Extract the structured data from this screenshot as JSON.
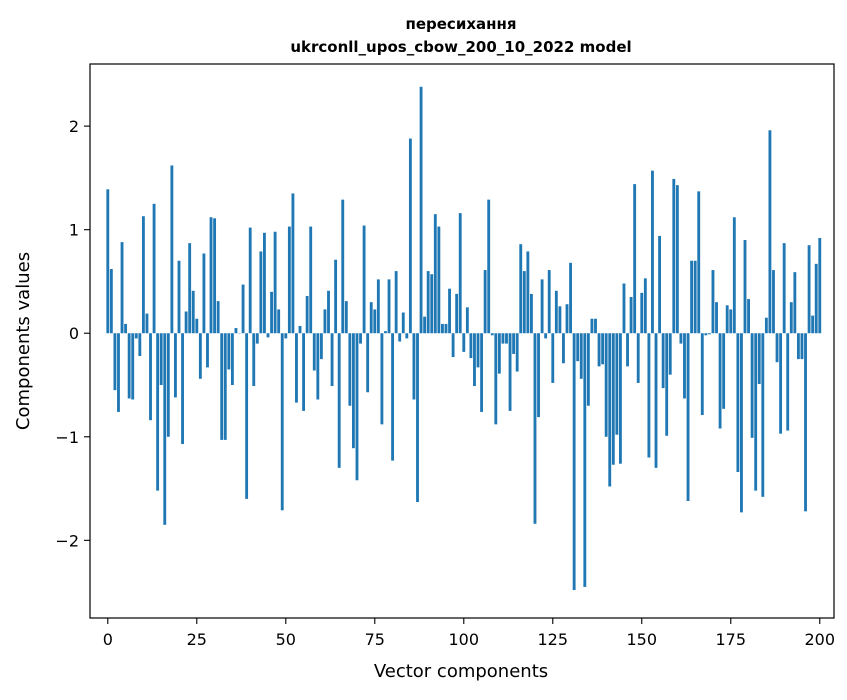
{
  "chart_data": {
    "type": "bar",
    "title": "пересихання",
    "subtitle": "ukrconll_upos_cbow_200_10_2022 model",
    "xlabel": "Vector components",
    "ylabel": "Components values",
    "xlim": [
      -5,
      204
    ],
    "ylim": [
      -2.75,
      2.6
    ],
    "xticks": [
      0,
      25,
      50,
      75,
      100,
      125,
      150,
      175,
      200
    ],
    "xtick_labels": [
      "0",
      "25",
      "50",
      "75",
      "100",
      "125",
      "150",
      "175",
      "200"
    ],
    "yticks": [
      -2,
      -1,
      0,
      1,
      2
    ],
    "ytick_labels": [
      "−2",
      "−1",
      "0",
      "1",
      "2"
    ],
    "grid": false,
    "bar_color": "#1f77b4",
    "series": [
      {
        "values": [
          1.39,
          0.62,
          -0.55,
          -0.76,
          0.88,
          0.09,
          -0.63,
          -0.64,
          -0.05,
          -0.22,
          1.13,
          0.19,
          -0.84,
          1.25,
          -1.52,
          -0.5,
          -1.85,
          -1.0,
          1.62,
          -0.62,
          0.7,
          -1.07,
          0.21,
          0.87,
          0.41,
          0.14,
          -0.44,
          0.77,
          -0.33,
          1.12,
          1.11,
          0.31,
          -1.03,
          -1.03,
          -0.35,
          -0.5,
          0.05,
          0.0,
          0.47,
          -1.6,
          1.02,
          -0.51,
          -0.1,
          0.79,
          0.97,
          -0.04,
          0.4,
          0.98,
          0.23,
          -1.71,
          -0.05,
          1.03,
          1.35,
          -0.67,
          0.07,
          -0.75,
          0.36,
          1.03,
          -0.36,
          -0.64,
          -0.25,
          0.23,
          0.41,
          -0.51,
          0.71,
          -1.3,
          1.29,
          0.31,
          -0.7,
          -1.11,
          -1.42,
          -0.1,
          1.04,
          -0.57,
          0.3,
          0.23,
          0.52,
          -0.88,
          0.02,
          0.52,
          -1.23,
          0.6,
          -0.08,
          0.2,
          -0.05,
          1.88,
          -0.64,
          -1.63,
          2.38,
          0.16,
          0.6,
          0.57,
          1.15,
          1.03,
          0.09,
          0.09,
          0.43,
          -0.23,
          0.38,
          1.16,
          -0.18,
          0.25,
          -0.24,
          -0.51,
          -0.33,
          -0.76,
          0.61,
          1.29,
          -0.02,
          -0.88,
          -0.39,
          -0.1,
          -0.1,
          -0.75,
          -0.2,
          -0.37,
          0.86,
          0.6,
          0.79,
          0.38,
          -1.84,
          -0.81,
          0.52,
          -0.05,
          0.61,
          -0.48,
          0.41,
          0.26,
          -0.29,
          0.28,
          0.68,
          -2.48,
          -0.27,
          -0.44,
          -2.45,
          -0.7,
          0.14,
          0.14,
          -0.32,
          -0.3,
          -1.0,
          -1.48,
          -1.27,
          -0.98,
          -1.26,
          0.48,
          -0.32,
          0.35,
          1.44,
          -0.48,
          0.39,
          0.53,
          -1.2,
          1.57,
          -1.3,
          0.94,
          -0.53,
          -0.99,
          -0.4,
          1.49,
          1.43,
          -0.1,
          -0.63,
          -1.62,
          0.7,
          0.7,
          1.37,
          -0.79,
          -0.02,
          -0.01,
          0.61,
          0.3,
          -0.92,
          -0.73,
          0.27,
          0.23,
          1.12,
          -1.34,
          -1.73,
          0.9,
          0.33,
          -1.01,
          -1.52,
          -0.49,
          -1.58,
          0.15,
          1.96,
          0.61,
          -0.28,
          -0.97,
          0.87,
          -0.94,
          0.3,
          0.59,
          -0.25,
          -0.25,
          -1.72,
          0.85,
          0.17,
          0.67,
          0.92
        ]
      }
    ]
  }
}
